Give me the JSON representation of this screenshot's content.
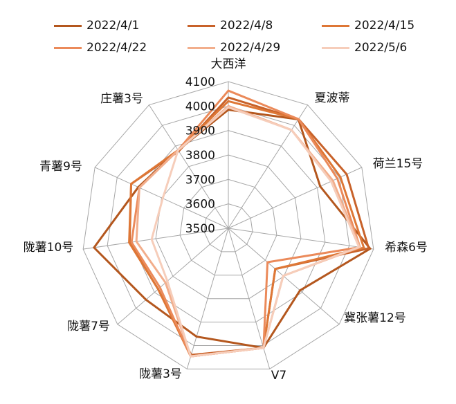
{
  "chart_data": {
    "type": "radar",
    "title": "",
    "categories": [
      "大西洋",
      "夏波蒂",
      "荷兰15号",
      "希森6号",
      "冀张薯12号",
      "V7",
      "陇薯3号",
      "陇薯7号",
      "陇薯10号",
      "青薯9号",
      "庄薯3号"
    ],
    "rlim": [
      3500,
      4100
    ],
    "ticks": [
      "3500",
      "3600",
      "3700",
      "3800",
      "3900",
      "4000",
      "4100"
    ],
    "tick_values": [
      3500,
      3600,
      3700,
      3800,
      3900,
      4000,
      4100
    ],
    "grid": true,
    "legend_position": "top",
    "series": [
      {
        "name": "2022/4/1",
        "color": "#B4571E",
        "values": [
          3985,
          4030,
          3913,
          4086,
          3888,
          4010,
          3962,
          3946,
          4055,
          3905,
          3880
        ]
      },
      {
        "name": "2022/4/8",
        "color": "#C8622A",
        "values": [
          4035,
          4031,
          4032,
          4080,
          3754,
          4010,
          4040,
          3880,
          3908,
          3937,
          3875
        ]
      },
      {
        "name": "2022/4/15",
        "color": "#DE7736",
        "values": [
          4020,
          4031,
          4004,
          4060,
          3754,
          4010,
          4046,
          3880,
          3910,
          3937,
          3880
        ]
      },
      {
        "name": "2022/4/22",
        "color": "#EB8A5A",
        "values": [
          4063,
          4031,
          3990,
          4044,
          3712,
          4010,
          4046,
          3870,
          3900,
          3900,
          3880
        ]
      },
      {
        "name": "2022/4/29",
        "color": "#F2AE8C",
        "values": [
          4000,
          3978,
          3970,
          4044,
          3797,
          4010,
          4046,
          3840,
          3880,
          3900,
          3880
        ]
      },
      {
        "name": "2022/5/6",
        "color": "#F6CDBA",
        "values": [
          3995,
          3978,
          3962,
          4040,
          3797,
          4010,
          4046,
          3830,
          3817,
          3795,
          3880
        ]
      }
    ]
  }
}
